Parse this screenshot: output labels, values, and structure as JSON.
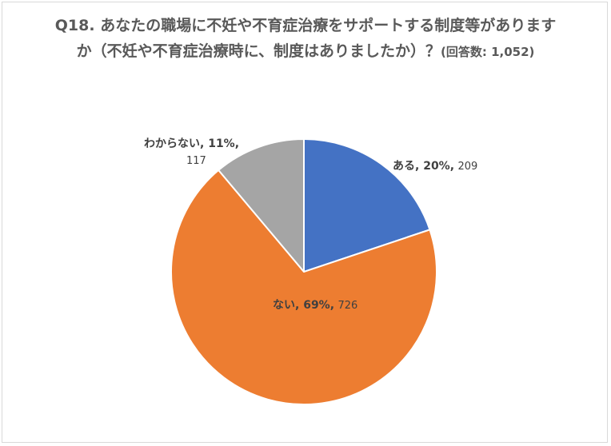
{
  "title": {
    "main": "Q18. あなたの職場に不妊や不育症治療をサポートする制度等がありますか（不妊や不育症治療時に、制度はありましたか）？",
    "sub": "(回答数: 1,052)"
  },
  "chart_data": {
    "type": "pie",
    "title": "Q18. あなたの職場に不妊や不育症治療をサポートする制度等がありますか（不妊や不育症治療時に、制度はありましたか）？(回答数: 1,052)",
    "slices": [
      {
        "label": "ある",
        "percent_label": "20%",
        "value": 209,
        "color": "#4472C4"
      },
      {
        "label": "ない",
        "percent_label": "69%",
        "value": 726,
        "color": "#ED7D31"
      },
      {
        "label": "わからない",
        "percent_label": "11%",
        "value": 117,
        "color": "#A5A5A5"
      }
    ],
    "start": "12 o'clock",
    "direction": "clockwise",
    "slice_border_color": "#ffffff"
  }
}
